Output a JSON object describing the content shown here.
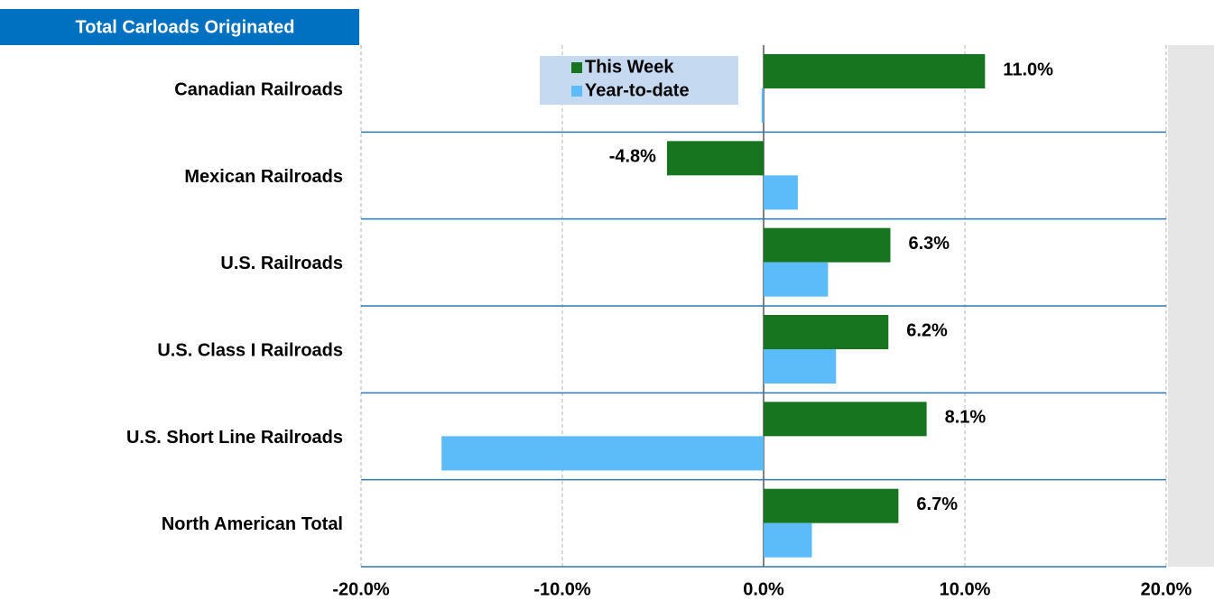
{
  "chart_data": {
    "type": "bar",
    "orientation": "horizontal",
    "title": "Total Carloads Originated",
    "categories": [
      "Canadian Railroads",
      "Mexican Railroads",
      "U.S. Railroads",
      "U.S. Class I Railroads",
      "U.S. Short Line Railroads",
      "North American Total"
    ],
    "series": [
      {
        "name": "This Week",
        "color": "#17751f",
        "values": [
          11.0,
          -4.8,
          6.3,
          6.2,
          8.1,
          6.7
        ],
        "value_labels": [
          "11.0%",
          "-4.8%",
          "6.3%",
          "6.2%",
          "8.1%",
          "6.7%"
        ]
      },
      {
        "name": "Year-to-date",
        "color": "#5bbcf9",
        "values": [
          -0.1,
          1.7,
          3.2,
          3.6,
          -16.0,
          2.4
        ]
      }
    ],
    "xlim": [
      -20,
      20
    ],
    "xticks": [
      {
        "value": -20,
        "label": "-20.0%"
      },
      {
        "value": -10,
        "label": "-10.0%"
      },
      {
        "value": 0,
        "label": "0.0%"
      },
      {
        "value": 10,
        "label": "10.0%"
      },
      {
        "value": 20,
        "label": "20.0%"
      }
    ],
    "grid": true
  }
}
